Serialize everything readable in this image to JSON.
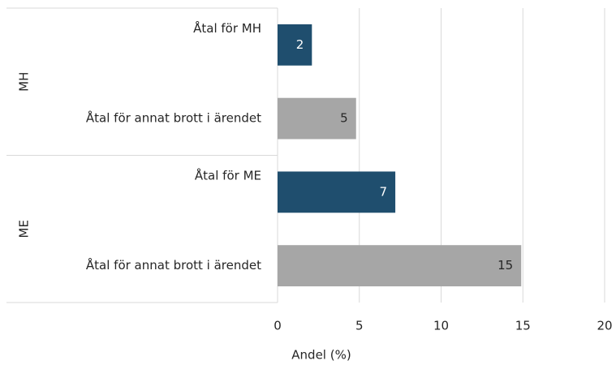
{
  "chart_data": {
    "type": "bar",
    "orientation": "horizontal",
    "x_label": "Andel (%)",
    "groups": [
      {
        "name": "MH",
        "categories": [
          "Åtal för MH",
          "Åtal för annat brott i ärendet"
        ],
        "values": [
          2.1,
          4.8
        ],
        "value_labels": [
          "2",
          "5"
        ]
      },
      {
        "name": "ME",
        "categories": [
          "Åtal för ME",
          "Åtal för annat brott i ärendet"
        ],
        "values": [
          7.2,
          14.9
        ],
        "value_labels": [
          "7",
          "15"
        ]
      }
    ],
    "colors": [
      "#1f4e6e",
      "#a6a6a6"
    ],
    "xlim": [
      0,
      20
    ],
    "xticks": [
      0,
      5,
      10,
      15,
      20
    ],
    "grid": true
  }
}
